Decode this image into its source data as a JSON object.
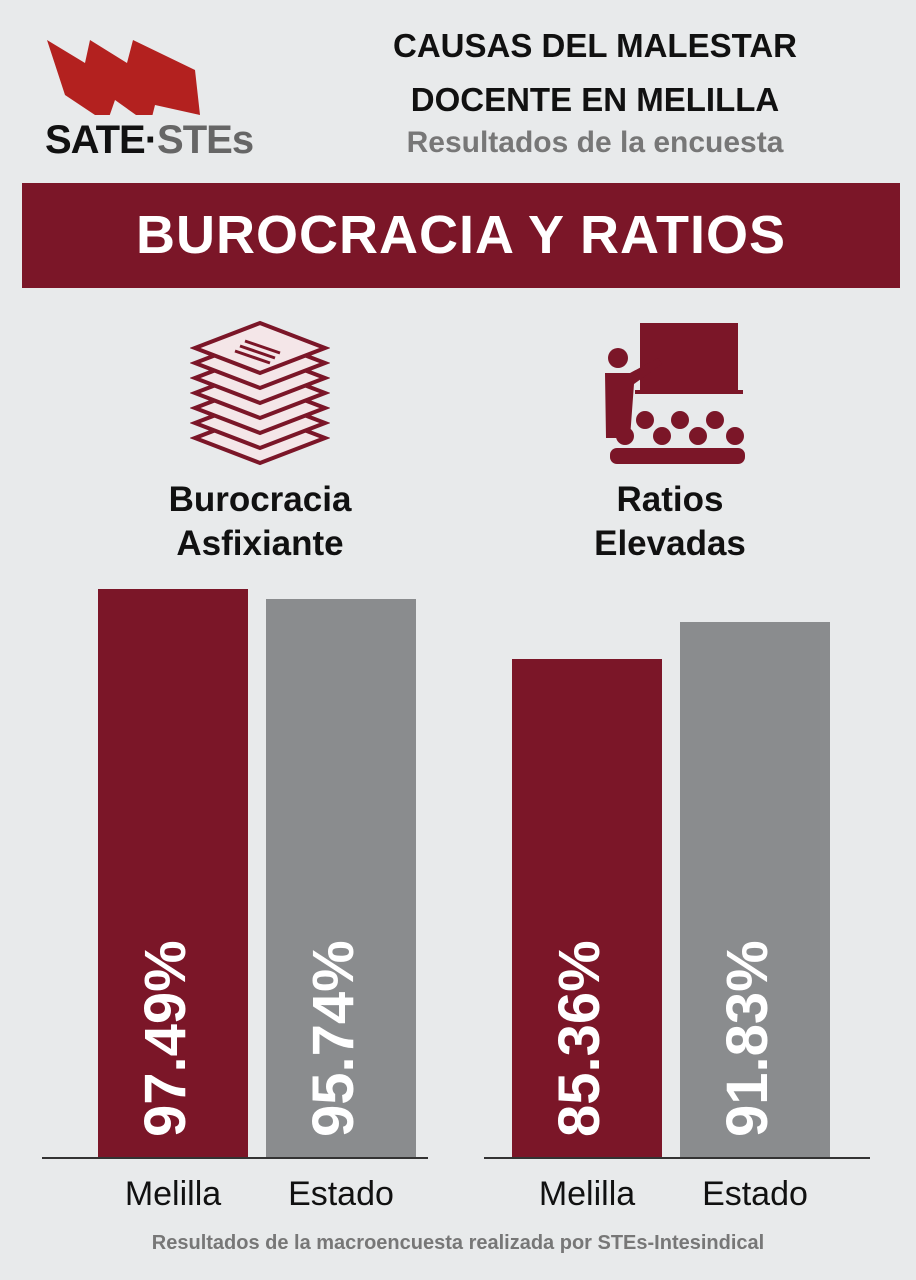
{
  "header": {
    "logo_text": "SATE-STEs",
    "title_line1": "CAUSAS DEL MALESTAR",
    "title_line2": "DOCENTE EN MELILLA",
    "subtitle": "Resultados de la encuesta"
  },
  "banner": "BUROCRACIA Y RATIOS",
  "footer": "Resultados de la macroencuesta realizada por STEs-Intesindical",
  "colors": {
    "melilla": "#7b1628",
    "estado": "#8a8c8e",
    "logo_red": "#b3211f"
  },
  "chart_data": [
    {
      "type": "bar",
      "title_line1": "Burocracia",
      "title_line2": "Asfixiante",
      "icon": "paper-stack-icon",
      "categories": [
        "Melilla",
        "Estado"
      ],
      "values": [
        97.49,
        95.74
      ],
      "labels": [
        "97.49%",
        "95.74%"
      ],
      "ylim": [
        0,
        100
      ]
    },
    {
      "type": "bar",
      "title_line1": "Ratios",
      "title_line2": "Elevadas",
      "icon": "classroom-teacher-icon",
      "categories": [
        "Melilla",
        "Estado"
      ],
      "values": [
        85.36,
        91.83
      ],
      "labels": [
        "85.36%",
        "91.83%"
      ],
      "ylim": [
        0,
        100
      ]
    }
  ]
}
